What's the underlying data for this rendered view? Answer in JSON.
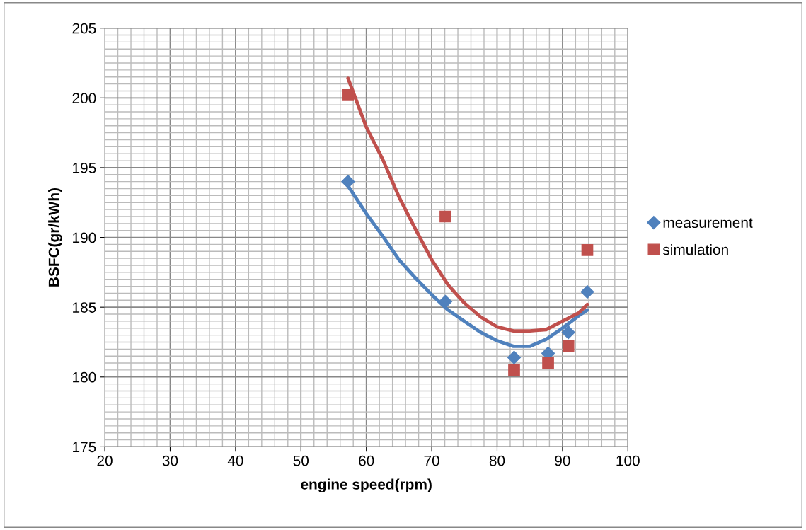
{
  "chart_data": {
    "type": "scatter",
    "xlabel": "engine speed(rpm)",
    "ylabel": "BSFC(gr/kWh)",
    "xlim": [
      20,
      100
    ],
    "xticks": [
      20,
      30,
      40,
      50,
      60,
      70,
      80,
      90,
      100
    ],
    "ylim": [
      175,
      205
    ],
    "yticks": [
      175,
      180,
      185,
      190,
      195,
      200,
      205
    ],
    "grid": true,
    "legend": "right",
    "series": [
      {
        "name": "measurement",
        "marker": "diamond",
        "color": "#4f81bd",
        "x": [
          57.2,
          72.1,
          82.6,
          87.8,
          90.9,
          93.8
        ],
        "values": [
          194.0,
          185.4,
          181.4,
          181.7,
          183.2,
          186.1
        ]
      },
      {
        "name": "simulation",
        "marker": "square",
        "color": "#c0504d",
        "x": [
          57.2,
          72.1,
          82.6,
          87.8,
          90.9,
          93.8
        ],
        "values": [
          200.2,
          191.5,
          180.5,
          181.0,
          182.2,
          189.1
        ]
      },
      {
        "type": "line",
        "marker": "none",
        "color": "#4f81bd",
        "x": [
          57.2,
          60,
          62.5,
          65,
          67.5,
          70,
          72.5,
          75,
          77.5,
          80,
          82.5,
          85,
          87.5,
          90,
          92.5,
          93.8
        ],
        "values": [
          193.7,
          191.7,
          190.1,
          188.4,
          187.1,
          185.9,
          184.8,
          184.0,
          183.2,
          182.6,
          182.2,
          182.2,
          182.7,
          183.5,
          184.4,
          184.8
        ]
      },
      {
        "type": "line",
        "marker": "none",
        "color": "#c0504d",
        "x": [
          57.2,
          60,
          62.5,
          65,
          67.5,
          70,
          72.5,
          75,
          77.5,
          80,
          82.5,
          85,
          87.5,
          90,
          92.5,
          93.8
        ],
        "values": [
          201.4,
          197.9,
          195.6,
          192.9,
          190.6,
          188.4,
          186.6,
          185.3,
          184.3,
          183.6,
          183.3,
          183.3,
          183.4,
          184.0,
          184.6,
          185.2
        ]
      }
    ]
  }
}
